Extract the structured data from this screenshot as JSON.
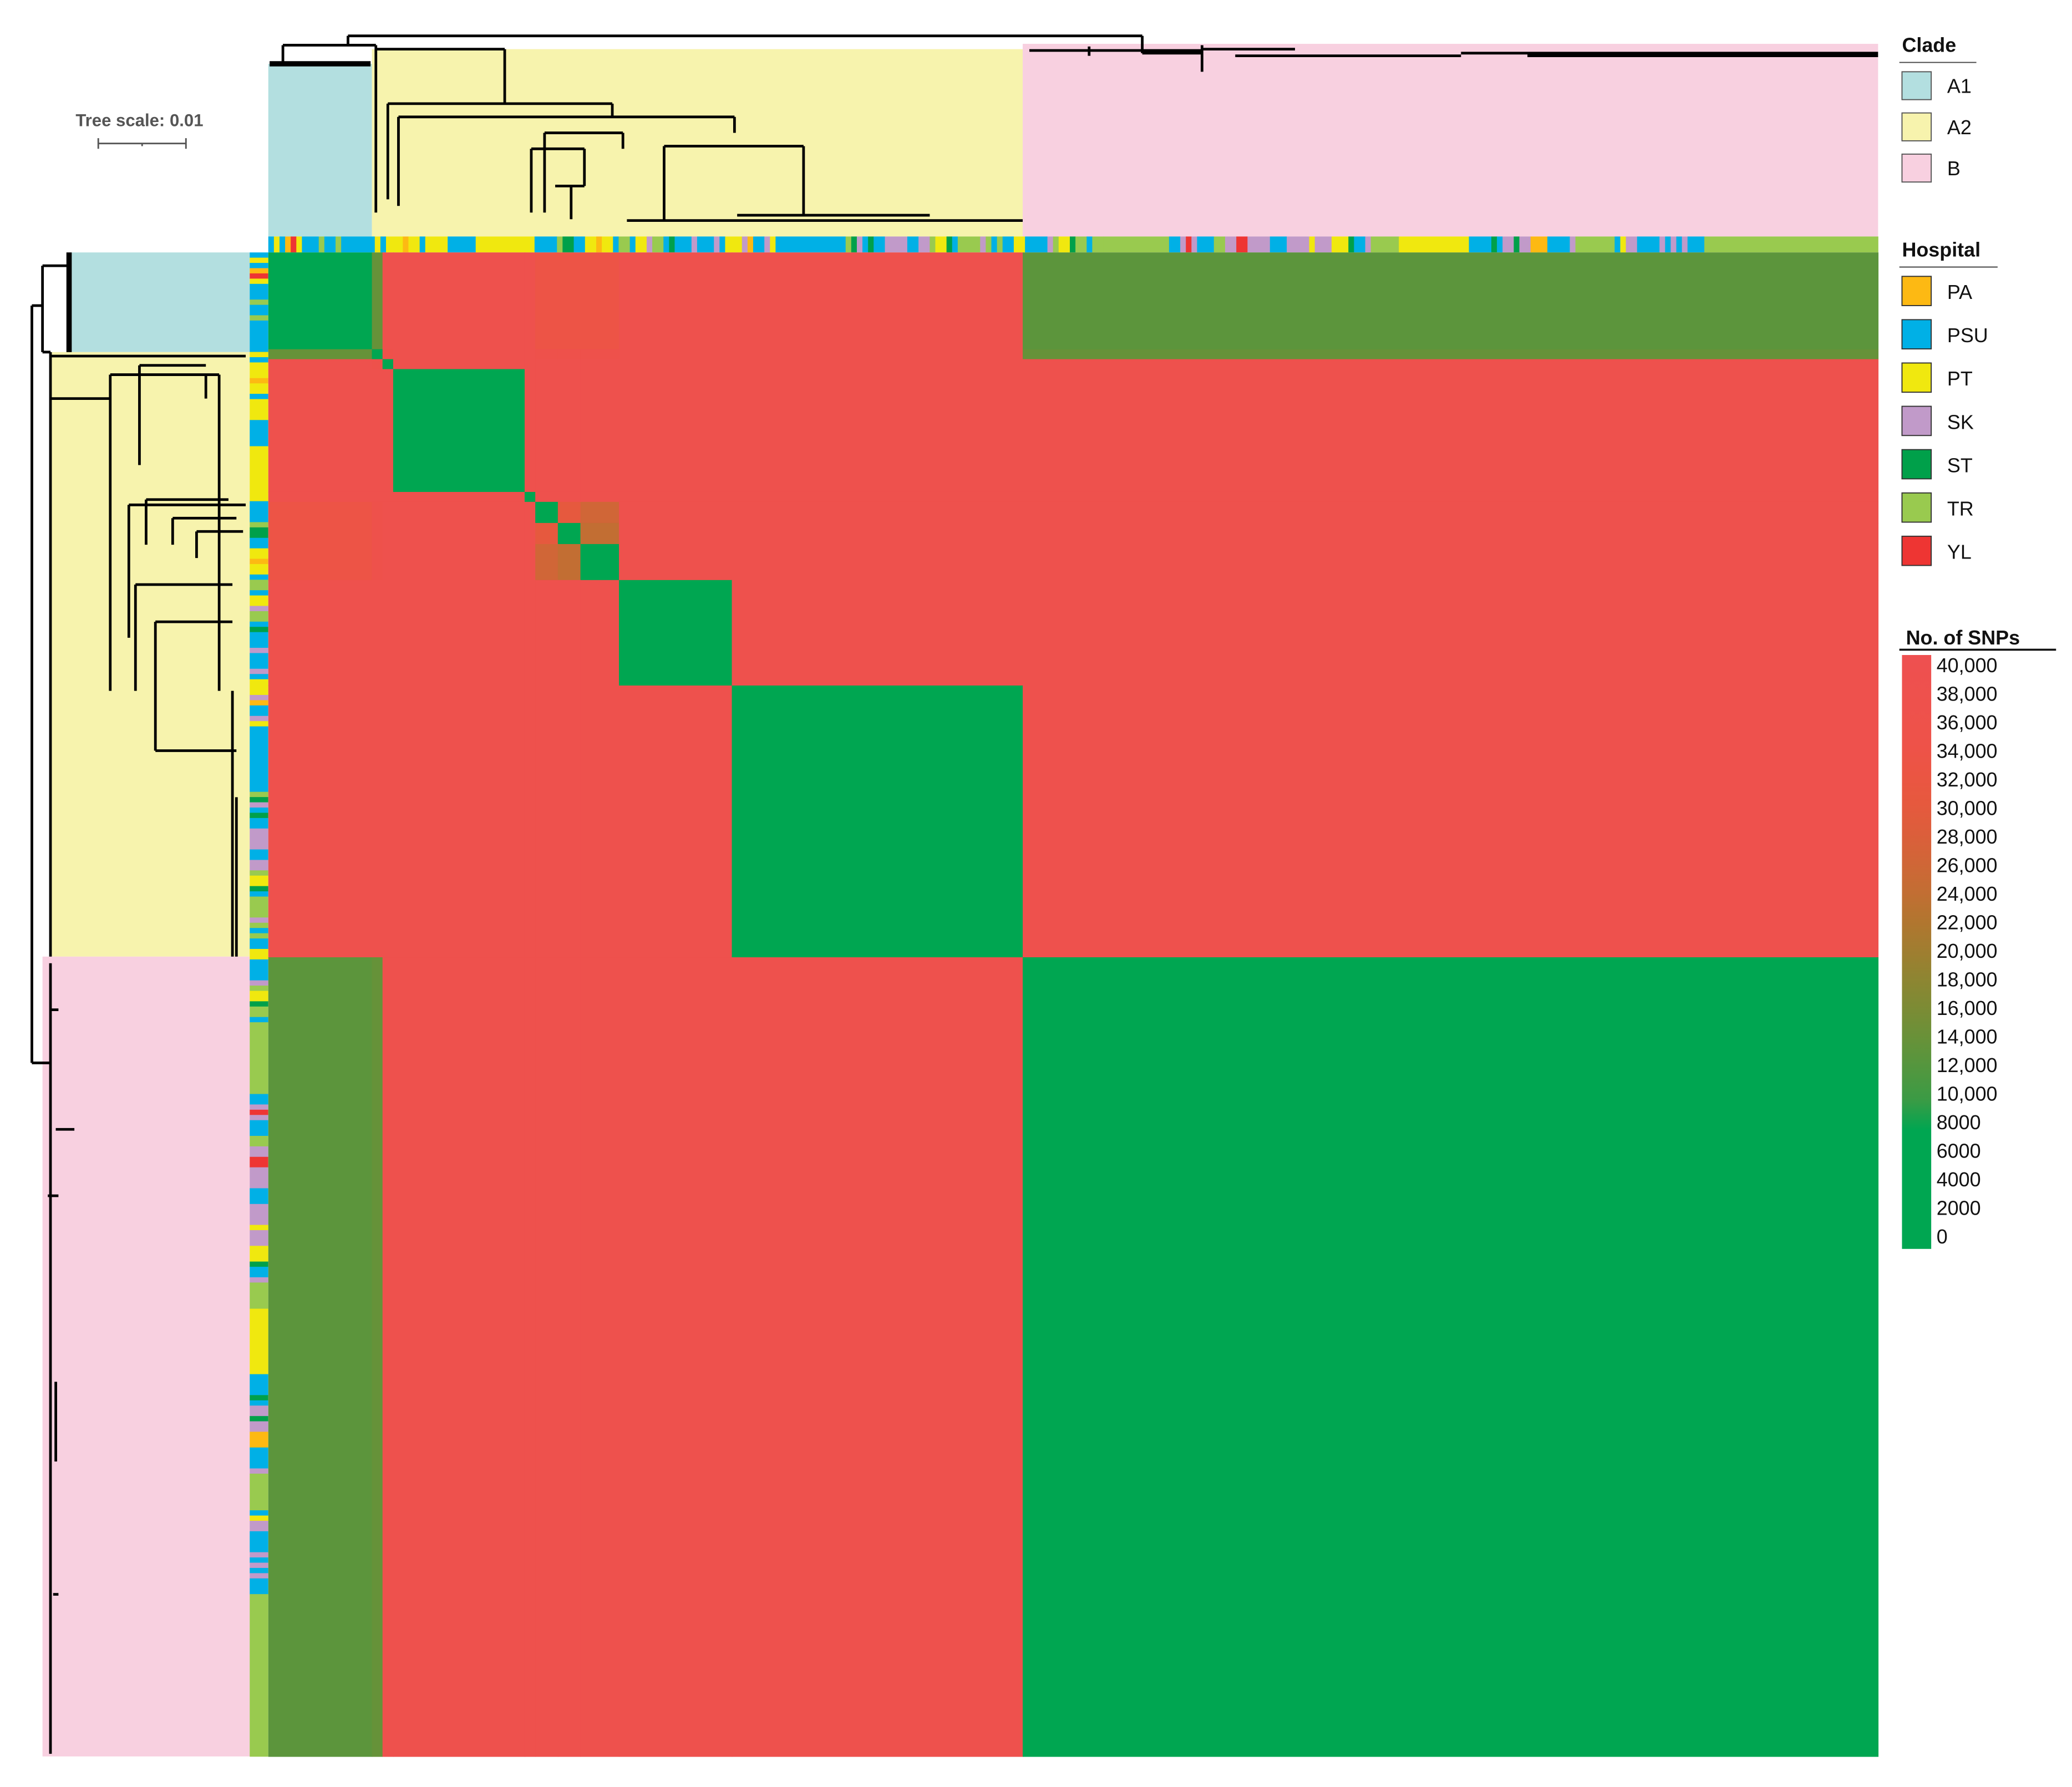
{
  "tree_scale": {
    "label": "Tree scale: 0.01"
  },
  "legend": {
    "clade": {
      "title": "Clade",
      "items": [
        {
          "label": "A1",
          "color": "#b3dfe0"
        },
        {
          "label": "A2",
          "color": "#f7f3ad"
        },
        {
          "label": "B",
          "color": "#f8d0e0"
        }
      ]
    },
    "hospital": {
      "title": "Hospital",
      "items": [
        {
          "code": "PA",
          "label": "PA",
          "color": "#fdb913"
        },
        {
          "code": "PSU",
          "label": "PSU",
          "color": "#00b0e6"
        },
        {
          "code": "PT",
          "label": "PT",
          "color": "#f0e80f"
        },
        {
          "code": "SK",
          "label": "SK",
          "color": "#c19ac9"
        },
        {
          "code": "ST",
          "label": "ST",
          "color": "#00a04a"
        },
        {
          "code": "TR",
          "label": "TR",
          "color": "#99ca4f"
        },
        {
          "code": "YL",
          "label": "YL",
          "color": "#ee3533"
        }
      ]
    },
    "snps": {
      "title": "No. of SNPs",
      "ticks": [
        "40,000",
        "38,000",
        "36,000",
        "34,000",
        "32,000",
        "30,000",
        "28,000",
        "26,000",
        "24,000",
        "22,000",
        "20,000",
        "18,000",
        "16,000",
        "14,000",
        "12,000",
        "10,000",
        "8000",
        "6000",
        "4000",
        "2000",
        "0"
      ]
    }
  },
  "chart_data": {
    "type": "heatmap",
    "title": "",
    "value_label": "No. of SNPs",
    "color_range": [
      0,
      40000
    ],
    "color_stops": [
      {
        "value": 0,
        "color": "#00a651"
      },
      {
        "value": 8000,
        "color": "#00a651"
      },
      {
        "value": 10000,
        "color": "#3a9b45"
      },
      {
        "value": 12000,
        "color": "#51973f"
      },
      {
        "value": 14000,
        "color": "#669239"
      },
      {
        "value": 16000,
        "color": "#7a8c35"
      },
      {
        "value": 18000,
        "color": "#8c8632"
      },
      {
        "value": 20000,
        "color": "#9f7e30"
      },
      {
        "value": 22000,
        "color": "#b1762f"
      },
      {
        "value": 24000,
        "color": "#c26e33"
      },
      {
        "value": 26000,
        "color": "#d06637"
      },
      {
        "value": 28000,
        "color": "#dc5e3b"
      },
      {
        "value": 30000,
        "color": "#e6593e"
      },
      {
        "value": 32000,
        "color": "#eb5543"
      },
      {
        "value": 34000,
        "color": "#ee5249"
      },
      {
        "value": 40000,
        "color": "#ee5050"
      }
    ],
    "groups": [
      {
        "clade": "A1"
      },
      {
        "clade": "A2"
      },
      {
        "clade": "A2"
      },
      {
        "clade": "A2"
      },
      {
        "clade": "A2"
      },
      {
        "clade": "A2"
      },
      {
        "clade": "A2"
      },
      {
        "clade": "A2"
      },
      {
        "clade": "A2"
      },
      {
        "clade": "A2"
      },
      {
        "clade": "B"
      }
    ],
    "values": [
      [
        500,
        14000,
        37000,
        37000,
        37000,
        33000,
        33000,
        33000,
        37000,
        37000,
        13000
      ],
      [
        14000,
        500,
        36000,
        37000,
        37000,
        36000,
        36000,
        36000,
        37000,
        37000,
        14000
      ],
      [
        37000,
        36000,
        500,
        37000,
        37000,
        37000,
        37000,
        37000,
        37000,
        37000,
        37000
      ],
      [
        37000,
        37000,
        37000,
        500,
        37000,
        37000,
        37000,
        37000,
        37000,
        37000,
        37000
      ],
      [
        37000,
        37000,
        37000,
        37000,
        500,
        37000,
        37000,
        37000,
        37000,
        37000,
        37000
      ],
      [
        33000,
        36000,
        37000,
        37000,
        37000,
        500,
        30000,
        26000,
        37000,
        37000,
        37000
      ],
      [
        33000,
        36000,
        37000,
        37000,
        37000,
        30000,
        500,
        24000,
        37000,
        37000,
        37000
      ],
      [
        33000,
        36000,
        37000,
        37000,
        37000,
        26000,
        24000,
        500,
        37000,
        37000,
        37000
      ],
      [
        37000,
        37000,
        37000,
        37000,
        37000,
        37000,
        37000,
        37000,
        500,
        37000,
        37000
      ],
      [
        37000,
        37000,
        37000,
        37000,
        37000,
        37000,
        37000,
        37000,
        37000,
        500,
        37000
      ],
      [
        13000,
        14000,
        37000,
        37000,
        37000,
        37000,
        37000,
        37000,
        37000,
        37000,
        500
      ]
    ],
    "isolate_hospitals": [
      [
        "PSU",
        10
      ],
      [
        "PT",
        10
      ],
      [
        "PSU",
        10
      ],
      [
        "PA",
        10
      ],
      [
        "YL",
        10
      ],
      [
        "PT",
        10
      ],
      [
        "PSU",
        30
      ],
      [
        "TR",
        10
      ],
      [
        "PSU",
        20
      ],
      [
        "TR",
        10
      ],
      [
        "PSU",
        60
      ],
      [
        "PT",
        10
      ],
      [
        "PSU",
        10
      ],
      [
        "PT",
        30
      ],
      [
        "PA",
        10
      ],
      [
        "PT",
        20
      ],
      [
        "PSU",
        10
      ],
      [
        "PT",
        40
      ],
      [
        "PSU",
        50
      ],
      [
        "PT",
        105
      ],
      [
        "PSU",
        40
      ],
      [
        "TR",
        10
      ],
      [
        "ST",
        20
      ],
      [
        "PSU",
        20
      ],
      [
        "PT",
        20
      ],
      [
        "PA",
        10
      ],
      [
        "PT",
        20
      ],
      [
        "PSU",
        10
      ],
      [
        "TR",
        20
      ],
      [
        "PSU",
        10
      ],
      [
        "PT",
        20
      ],
      [
        "SK",
        10
      ],
      [
        "TR",
        20
      ],
      [
        "PSU",
        10
      ],
      [
        "ST",
        10
      ],
      [
        "PSU",
        30
      ],
      [
        "SK",
        10
      ],
      [
        "PSU",
        30
      ],
      [
        "SK",
        10
      ],
      [
        "PSU",
        10
      ],
      [
        "PT",
        30
      ],
      [
        "SK",
        10
      ],
      [
        "PA",
        10
      ],
      [
        "PSU",
        20
      ],
      [
        "SK",
        10
      ],
      [
        "PT",
        10
      ],
      [
        "PSU",
        125
      ],
      [
        "TR",
        10
      ],
      [
        "ST",
        10
      ],
      [
        "SK",
        10
      ],
      [
        "PSU",
        10
      ],
      [
        "ST",
        10
      ],
      [
        "PSU",
        20
      ],
      [
        "SK",
        40
      ],
      [
        "PSU",
        20
      ],
      [
        "SK",
        20
      ],
      [
        "TR",
        10
      ],
      [
        "PT",
        20
      ],
      [
        "ST",
        10
      ],
      [
        "PSU",
        10
      ],
      [
        "TR",
        40
      ],
      [
        "SK",
        10
      ],
      [
        "TR",
        10
      ],
      [
        "PSU",
        10
      ],
      [
        "TR",
        10
      ],
      [
        "PSU",
        20
      ],
      [
        "PT",
        20
      ],
      [
        "PSU",
        40
      ],
      [
        "SK",
        10
      ],
      [
        "TR",
        10
      ],
      [
        "PT",
        20
      ],
      [
        "ST",
        10
      ],
      [
        "TR",
        20
      ],
      [
        "PSU",
        10
      ],
      [
        "TR",
        20
      ],
      [
        "TR",
        117
      ],
      [
        "PSU",
        20
      ],
      [
        "SK",
        10
      ],
      [
        "YL",
        10
      ],
      [
        "SK",
        10
      ],
      [
        "PSU",
        30
      ],
      [
        "TR",
        20
      ],
      [
        "SK",
        20
      ],
      [
        "YL",
        20
      ],
      [
        "SK",
        40
      ],
      [
        "PSU",
        30
      ],
      [
        "SK",
        40
      ],
      [
        "PT",
        10
      ],
      [
        "SK",
        30
      ],
      [
        "PT",
        30
      ],
      [
        "ST",
        10
      ],
      [
        "PSU",
        20
      ],
      [
        "SK",
        10
      ],
      [
        "TR",
        50
      ],
      [
        "PT",
        125
      ],
      [
        "PSU",
        40
      ],
      [
        "ST",
        10
      ],
      [
        "PSU",
        10
      ],
      [
        "SK",
        20
      ],
      [
        "ST",
        10
      ],
      [
        "SK",
        20
      ],
      [
        "PA",
        30
      ],
      [
        "PSU",
        40
      ],
      [
        "SK",
        10
      ],
      [
        "TR",
        70
      ],
      [
        "PSU",
        10
      ],
      [
        "PT",
        10
      ],
      [
        "SK",
        20
      ],
      [
        "PSU",
        40
      ],
      [
        "SK",
        10
      ],
      [
        "PSU",
        10
      ],
      [
        "SK",
        10
      ],
      [
        "PSU",
        10
      ],
      [
        "SK",
        10
      ],
      [
        "PSU",
        30
      ],
      [
        "TR",
        310
      ]
    ],
    "legend_placement": "right"
  }
}
